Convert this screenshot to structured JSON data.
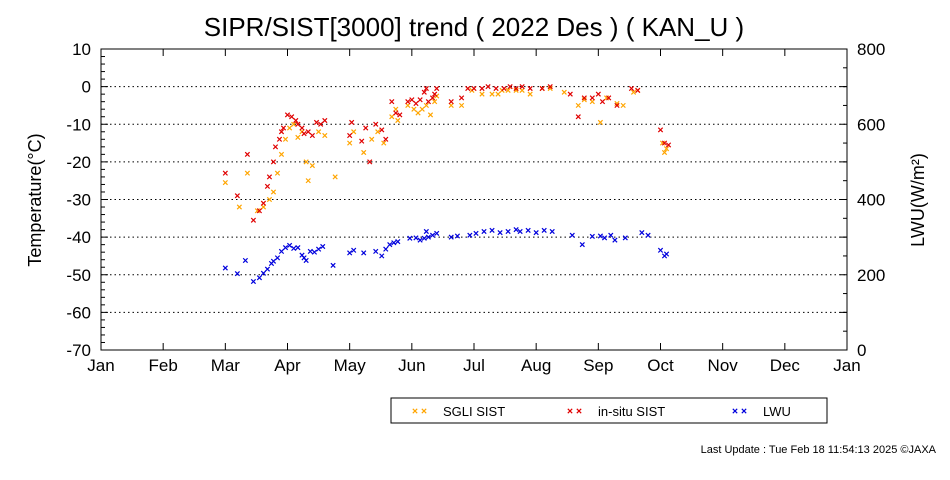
{
  "chart_data": {
    "type": "scatter",
    "title": "SIPR/SIST[3000] trend ( 2022 Des ) ( KAN_U )",
    "ylabel": "Temperature(°C)",
    "y2label": "LWU(W/m²)",
    "ylim": [
      -70,
      10
    ],
    "y2lim": [
      0,
      800
    ],
    "yticks": [
      "10",
      "0",
      "-10",
      "-20",
      "-30",
      "-40",
      "-50",
      "-60",
      "-70"
    ],
    "y2ticks": [
      "800",
      "600",
      "400",
      "200",
      "0"
    ],
    "xticks": [
      "Jan",
      "Feb",
      "Mar",
      "Apr",
      "May",
      "Jun",
      "Jul",
      "Aug",
      "Sep",
      "Oct",
      "Nov",
      "Dec",
      "Jan"
    ],
    "grid": "horizontal dotted",
    "legend_position": "bottom",
    "series": [
      {
        "name": "SGLI SIST",
        "color": "#ffa500",
        "axis": "left",
        "points": [
          [
            "2022-03-01",
            -25.5
          ],
          [
            "2022-03-08",
            -32
          ],
          [
            "2022-03-12",
            -23
          ],
          [
            "2022-03-17",
            -33
          ],
          [
            "2022-03-20",
            -32
          ],
          [
            "2022-03-23",
            -30
          ],
          [
            "2022-03-25",
            -28
          ],
          [
            "2022-03-27",
            -23
          ],
          [
            "2022-03-29",
            -18
          ],
          [
            "2022-03-31",
            -14
          ],
          [
            "2022-04-02",
            -11
          ],
          [
            "2022-04-04",
            -10
          ],
          [
            "2022-04-06",
            -13.5
          ],
          [
            "2022-04-08",
            -12
          ],
          [
            "2022-04-10",
            -20
          ],
          [
            "2022-04-11",
            -25
          ],
          [
            "2022-04-13",
            -21
          ],
          [
            "2022-04-16",
            -12
          ],
          [
            "2022-04-19",
            -13
          ],
          [
            "2022-04-24",
            -24
          ],
          [
            "2022-05-01",
            -15
          ],
          [
            "2022-05-03",
            -12
          ],
          [
            "2022-05-08",
            -17.5
          ],
          [
            "2022-05-12",
            -14
          ],
          [
            "2022-05-15",
            -12
          ],
          [
            "2022-05-18",
            -15
          ],
          [
            "2022-05-22",
            -8
          ],
          [
            "2022-05-24",
            -6
          ],
          [
            "2022-05-25",
            -9
          ],
          [
            "2022-05-30",
            -5
          ],
          [
            "2022-06-02",
            -6
          ],
          [
            "2022-06-04",
            -7
          ],
          [
            "2022-06-06",
            -6
          ],
          [
            "2022-06-08",
            -5
          ],
          [
            "2022-06-10",
            -7.5
          ],
          [
            "2022-06-12",
            -4
          ],
          [
            "2022-06-13",
            -2.5
          ],
          [
            "2022-06-20",
            -5
          ],
          [
            "2022-06-25",
            -5
          ],
          [
            "2022-06-30",
            -1
          ],
          [
            "2022-07-05",
            -2
          ],
          [
            "2022-07-10",
            -2
          ],
          [
            "2022-07-13",
            -2
          ],
          [
            "2022-07-15",
            -1
          ],
          [
            "2022-07-18",
            -1
          ],
          [
            "2022-07-22",
            -1
          ],
          [
            "2022-07-25",
            -1
          ],
          [
            "2022-07-29",
            -2
          ],
          [
            "2022-08-04",
            -0.5
          ],
          [
            "2022-08-08",
            -0.5
          ],
          [
            "2022-08-15",
            -1.5
          ],
          [
            "2022-08-22",
            -5
          ],
          [
            "2022-08-25",
            -3.5
          ],
          [
            "2022-08-29",
            -4
          ],
          [
            "2022-09-02",
            -9.5
          ],
          [
            "2022-09-05",
            -3
          ],
          [
            "2022-09-10",
            -4.5
          ],
          [
            "2022-09-13",
            -5
          ],
          [
            "2022-09-18",
            -1.5
          ],
          [
            "2022-09-20",
            -1
          ],
          [
            "2022-10-02",
            -15
          ],
          [
            "2022-10-03",
            -17.5
          ],
          [
            "2022-10-04",
            -16.5
          ]
        ]
      },
      {
        "name": "in-situ SIST",
        "color": "#e00000",
        "axis": "left",
        "points": [
          [
            "2022-03-01",
            -23
          ],
          [
            "2022-03-07",
            -29
          ],
          [
            "2022-03-12",
            -18
          ],
          [
            "2022-03-15",
            -35.5
          ],
          [
            "2022-03-18",
            -33
          ],
          [
            "2022-03-20",
            -31
          ],
          [
            "2022-03-22",
            -26.5
          ],
          [
            "2022-03-23",
            -24
          ],
          [
            "2022-03-25",
            -20
          ],
          [
            "2022-03-26",
            -16
          ],
          [
            "2022-03-28",
            -14
          ],
          [
            "2022-03-29",
            -12
          ],
          [
            "2022-03-30",
            -11
          ],
          [
            "2022-04-01",
            -7.5
          ],
          [
            "2022-04-03",
            -8
          ],
          [
            "2022-04-05",
            -9
          ],
          [
            "2022-04-06",
            -10
          ],
          [
            "2022-04-08",
            -11
          ],
          [
            "2022-04-09",
            -12.5
          ],
          [
            "2022-04-11",
            -12
          ],
          [
            "2022-04-13",
            -13
          ],
          [
            "2022-04-15",
            -9.5
          ],
          [
            "2022-04-17",
            -10
          ],
          [
            "2022-04-19",
            -9
          ],
          [
            "2022-05-01",
            -13
          ],
          [
            "2022-05-02",
            -9.5
          ],
          [
            "2022-05-07",
            -14.5
          ],
          [
            "2022-05-09",
            -11
          ],
          [
            "2022-05-11",
            -20
          ],
          [
            "2022-05-14",
            -10
          ],
          [
            "2022-05-17",
            -11.5
          ],
          [
            "2022-05-19",
            -14
          ],
          [
            "2022-05-22",
            -4
          ],
          [
            "2022-05-24",
            -7
          ],
          [
            "2022-05-26",
            -7.5
          ],
          [
            "2022-05-30",
            -4
          ],
          [
            "2022-06-01",
            -3.5
          ],
          [
            "2022-06-03",
            -4.5
          ],
          [
            "2022-06-05",
            -3.5
          ],
          [
            "2022-06-07",
            -1.5
          ],
          [
            "2022-06-08",
            -0.5
          ],
          [
            "2022-06-09",
            -4
          ],
          [
            "2022-06-11",
            -3
          ],
          [
            "2022-06-12",
            -2
          ],
          [
            "2022-06-13",
            -0.5
          ],
          [
            "2022-06-20",
            -4
          ],
          [
            "2022-06-25",
            -3
          ],
          [
            "2022-06-28",
            -0.5
          ],
          [
            "2022-07-01",
            -0.5
          ],
          [
            "2022-07-05",
            -0.5
          ],
          [
            "2022-07-08",
            0
          ],
          [
            "2022-07-12",
            -0.5
          ],
          [
            "2022-07-16",
            -0.5
          ],
          [
            "2022-07-19",
            0
          ],
          [
            "2022-07-22",
            -0.5
          ],
          [
            "2022-07-25",
            0
          ],
          [
            "2022-07-29",
            -0.5
          ],
          [
            "2022-08-04",
            -0.5
          ],
          [
            "2022-08-08",
            0
          ],
          [
            "2022-08-18",
            -2
          ],
          [
            "2022-08-22",
            -8
          ],
          [
            "2022-08-25",
            -3
          ],
          [
            "2022-08-29",
            -3
          ],
          [
            "2022-09-01",
            -2
          ],
          [
            "2022-09-03",
            -4
          ],
          [
            "2022-09-06",
            -3
          ],
          [
            "2022-09-10",
            -5
          ],
          [
            "2022-09-17",
            -0.5
          ],
          [
            "2022-09-20",
            -1
          ],
          [
            "2022-10-01",
            -11.5
          ],
          [
            "2022-10-03",
            -15
          ],
          [
            "2022-10-05",
            -15.5
          ]
        ]
      },
      {
        "name": "LWU",
        "color": "#0000dd",
        "axis": "right",
        "points": [
          [
            "2022-03-01",
            218
          ],
          [
            "2022-03-07",
            203
          ],
          [
            "2022-03-11",
            238
          ],
          [
            "2022-03-15",
            182
          ],
          [
            "2022-03-18",
            192
          ],
          [
            "2022-03-20",
            204
          ],
          [
            "2022-03-22",
            215
          ],
          [
            "2022-03-24",
            230
          ],
          [
            "2022-03-25",
            236
          ],
          [
            "2022-03-27",
            245
          ],
          [
            "2022-03-29",
            262
          ],
          [
            "2022-03-31",
            272
          ],
          [
            "2022-04-02",
            278
          ],
          [
            "2022-04-04",
            270
          ],
          [
            "2022-04-06",
            272
          ],
          [
            "2022-04-08",
            252
          ],
          [
            "2022-04-09",
            245
          ],
          [
            "2022-04-10",
            238
          ],
          [
            "2022-04-12",
            262
          ],
          [
            "2022-04-14",
            260
          ],
          [
            "2022-04-16",
            268
          ],
          [
            "2022-04-18",
            275
          ],
          [
            "2022-04-23",
            225
          ],
          [
            "2022-05-01",
            258
          ],
          [
            "2022-05-03",
            265
          ],
          [
            "2022-05-08",
            258
          ],
          [
            "2022-05-14",
            262
          ],
          [
            "2022-05-17",
            250
          ],
          [
            "2022-05-19",
            268
          ],
          [
            "2022-05-21",
            280
          ],
          [
            "2022-05-23",
            285
          ],
          [
            "2022-05-25",
            288
          ],
          [
            "2022-05-31",
            297
          ],
          [
            "2022-06-03",
            298
          ],
          [
            "2022-06-05",
            292
          ],
          [
            "2022-06-07",
            297
          ],
          [
            "2022-06-08",
            315
          ],
          [
            "2022-06-09",
            300
          ],
          [
            "2022-06-11",
            305
          ],
          [
            "2022-06-13",
            310
          ],
          [
            "2022-06-20",
            300
          ],
          [
            "2022-06-23",
            303
          ],
          [
            "2022-06-29",
            305
          ],
          [
            "2022-07-02",
            310
          ],
          [
            "2022-07-06",
            315
          ],
          [
            "2022-07-10",
            318
          ],
          [
            "2022-07-14",
            312
          ],
          [
            "2022-07-18",
            315
          ],
          [
            "2022-07-22",
            320
          ],
          [
            "2022-07-24",
            315
          ],
          [
            "2022-07-28",
            318
          ],
          [
            "2022-08-01",
            312
          ],
          [
            "2022-08-05",
            318
          ],
          [
            "2022-08-09",
            315
          ],
          [
            "2022-08-19",
            305
          ],
          [
            "2022-08-24",
            280
          ],
          [
            "2022-08-29",
            302
          ],
          [
            "2022-09-02",
            303
          ],
          [
            "2022-09-04",
            298
          ],
          [
            "2022-09-07",
            305
          ],
          [
            "2022-09-09",
            292
          ],
          [
            "2022-09-14",
            298
          ],
          [
            "2022-09-22",
            312
          ],
          [
            "2022-09-25",
            305
          ],
          [
            "2022-10-01",
            265
          ],
          [
            "2022-10-03",
            250
          ],
          [
            "2022-10-04",
            255
          ]
        ]
      }
    ]
  },
  "footer": {
    "last_update": "Last Update : Tue Feb 18 11:54:13 2025 ©JAXA"
  }
}
